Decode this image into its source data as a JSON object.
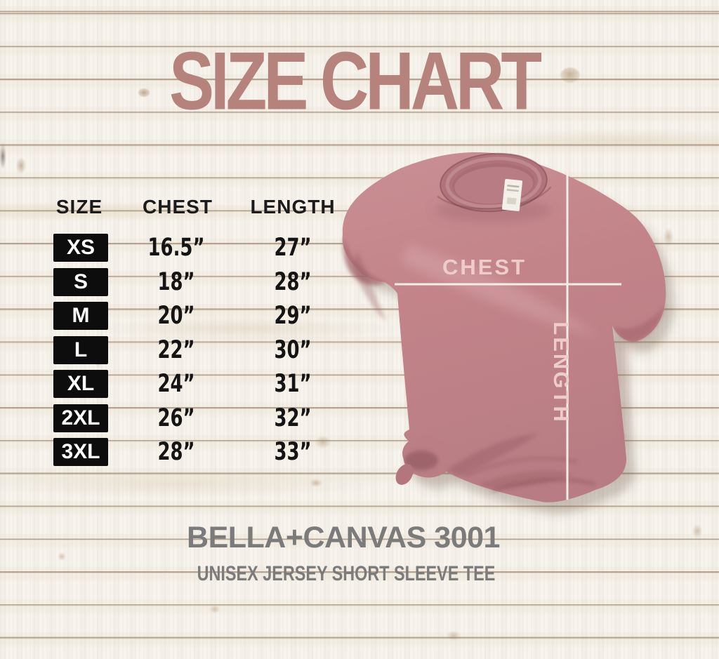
{
  "title": "SIZE CHART",
  "colors": {
    "accent": "#b5827c",
    "table-text": "#1b1b1b",
    "badge-bg": "#0d0d0d",
    "badge-text": "#ffffff",
    "shirt": "#c28489",
    "shirt-line": "#f9ece9",
    "shirt-label": "#edccca",
    "footer-text": "#7b7b7b"
  },
  "table": {
    "headers": [
      "SIZE",
      "CHEST",
      "LENGTH"
    ],
    "rows": [
      {
        "size": "XS",
        "chest": "16.5”",
        "length": "27”"
      },
      {
        "size": "S",
        "chest": "18”",
        "length": "28”"
      },
      {
        "size": "M",
        "chest": "20”",
        "length": "29”"
      },
      {
        "size": "L",
        "chest": "22”",
        "length": "30”"
      },
      {
        "size": "XL",
        "chest": "24”",
        "length": "31”"
      },
      {
        "size": "2XL",
        "chest": "26”",
        "length": "32”"
      },
      {
        "size": "3XL",
        "chest": "28”",
        "length": "33”"
      }
    ]
  },
  "shirt": {
    "chest_label": "CHEST",
    "length_label": "LENGTH"
  },
  "footer": {
    "brand": "BELLA+CANVAS 3001",
    "subtitle": "UNISEX JERSEY SHORT SLEEVE TEE"
  },
  "chart_data": {
    "type": "table",
    "title": "SIZE CHART",
    "columns": [
      "SIZE",
      "CHEST",
      "LENGTH"
    ],
    "units": "inches",
    "rows": [
      [
        "XS",
        "16.5\"",
        "27\""
      ],
      [
        "S",
        "18\"",
        "28\""
      ],
      [
        "M",
        "20\"",
        "29\""
      ],
      [
        "L",
        "22\"",
        "30\""
      ],
      [
        "XL",
        "24\"",
        "31\""
      ],
      [
        "2XL",
        "26\"",
        "32\""
      ],
      [
        "3XL",
        "28\"",
        "33\""
      ]
    ],
    "product": "BELLA+CANVAS 3001 — UNISEX JERSEY SHORT SLEEVE TEE"
  }
}
